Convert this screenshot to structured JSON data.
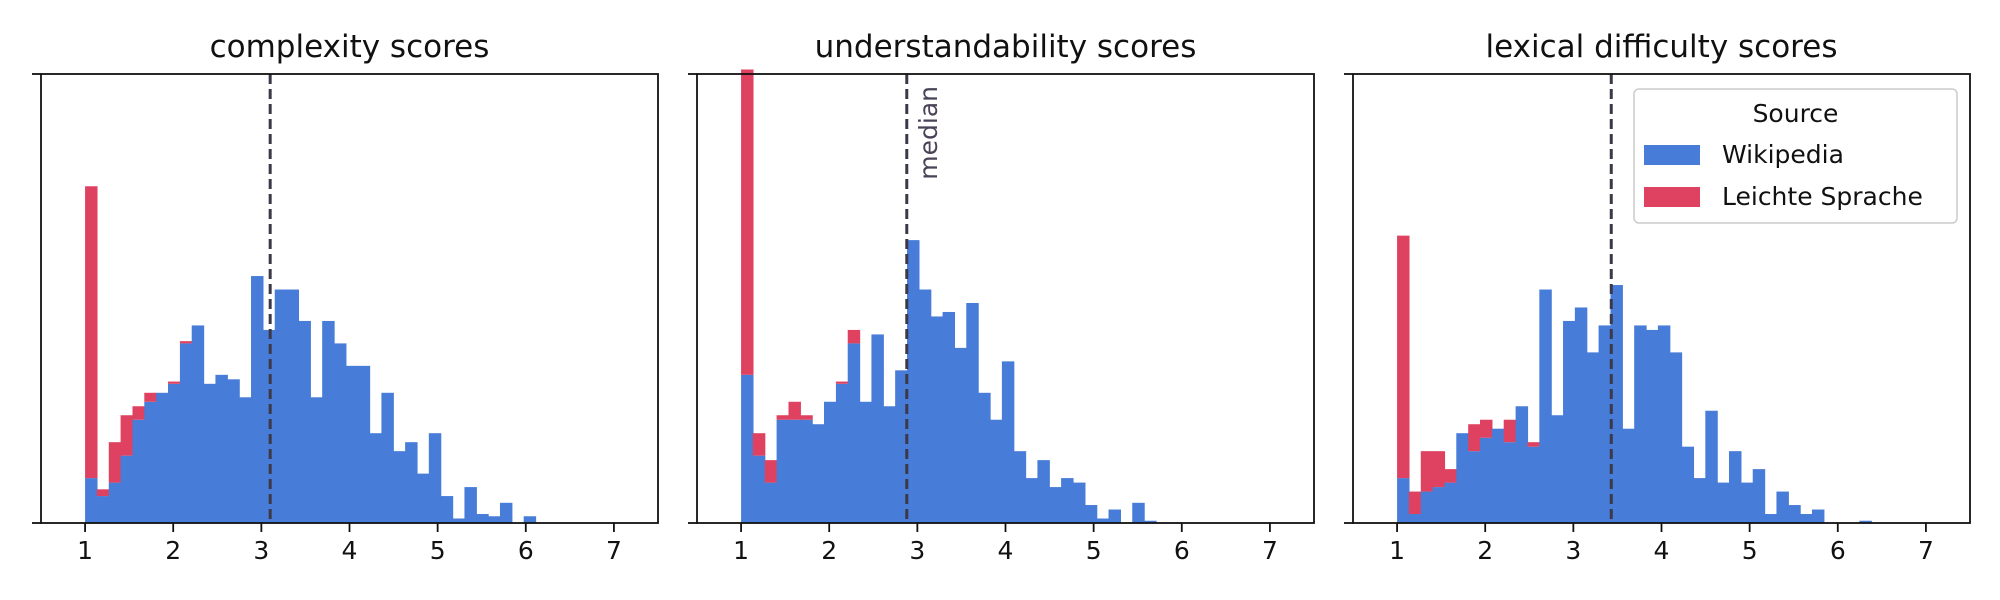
{
  "chart_data": [
    {
      "type": "bar",
      "title": "complexity scores",
      "xlabel": "",
      "ylabel": "",
      "xlim": [
        0.5,
        7.5
      ],
      "ylim": [
        0,
        1.0
      ],
      "xticks": [
        1,
        2,
        3,
        4,
        5,
        6,
        7
      ],
      "bin_width": 0.1345,
      "stacked": true,
      "median": 3.1,
      "median_label": "",
      "bin_starts": [
        1.0,
        1.134,
        1.269,
        1.403,
        1.538,
        1.672,
        1.807,
        1.941,
        2.076,
        2.21,
        2.345,
        2.479,
        2.614,
        2.748,
        2.883,
        3.017,
        3.152,
        3.286,
        3.421,
        3.555,
        3.69,
        3.824,
        3.959,
        4.093,
        4.228,
        4.362,
        4.497,
        4.631,
        4.766,
        4.9,
        5.035,
        5.169,
        5.304,
        5.438,
        5.573,
        5.707,
        5.842,
        5.976,
        6.111,
        6.245
      ],
      "series": [
        {
          "name": "Wikipedia",
          "color": "#477cd8",
          "values": [
            0.1,
            0.06,
            0.09,
            0.15,
            0.23,
            0.27,
            0.29,
            0.31,
            0.4,
            0.44,
            0.31,
            0.33,
            0.32,
            0.28,
            0.55,
            0.43,
            0.52,
            0.52,
            0.45,
            0.28,
            0.45,
            0.4,
            0.35,
            0.35,
            0.2,
            0.29,
            0.16,
            0.18,
            0.11,
            0.2,
            0.06,
            0.01,
            0.08,
            0.02,
            0.015,
            0.045,
            0.0,
            0.015,
            0.0,
            0.0
          ]
        },
        {
          "name": "Leichte Sprache",
          "color": "#de4260",
          "values": [
            0.65,
            0.015,
            0.09,
            0.09,
            0.03,
            0.02,
            0.0,
            0.005,
            0.005,
            0.0,
            0.0,
            0.0,
            0.0,
            0.0,
            0.0,
            0.0,
            0.0,
            0.0,
            0.0,
            0.0,
            0.0,
            0.0,
            0.0,
            0.0,
            0.0,
            0.0,
            0.0,
            0.0,
            0.0,
            0.0,
            0.0,
            0.0,
            0.0,
            0.0,
            0.0,
            0.0,
            0.0,
            0.0,
            0.0,
            0.0
          ]
        }
      ]
    },
    {
      "type": "bar",
      "title": "understandability scores",
      "xlabel": "",
      "ylabel": "",
      "xlim": [
        0.5,
        7.5
      ],
      "ylim": [
        0,
        1.0
      ],
      "xticks": [
        1,
        2,
        3,
        4,
        5,
        6,
        7
      ],
      "bin_width": 0.1345,
      "stacked": true,
      "median": 2.88,
      "median_label": "median",
      "bin_starts": [
        1.0,
        1.134,
        1.269,
        1.403,
        1.538,
        1.672,
        1.807,
        1.941,
        2.076,
        2.21,
        2.345,
        2.479,
        2.614,
        2.748,
        2.883,
        3.017,
        3.152,
        3.286,
        3.421,
        3.555,
        3.69,
        3.824,
        3.959,
        4.093,
        4.228,
        4.362,
        4.497,
        4.631,
        4.766,
        4.9,
        5.035,
        5.169,
        5.304,
        5.438,
        5.573,
        5.707,
        5.842,
        5.976,
        6.111,
        6.245
      ],
      "series": [
        {
          "name": "Wikipedia",
          "color": "#477cd8",
          "values": [
            0.33,
            0.15,
            0.09,
            0.23,
            0.23,
            0.23,
            0.22,
            0.27,
            0.31,
            0.4,
            0.27,
            0.42,
            0.26,
            0.34,
            0.63,
            0.52,
            0.46,
            0.47,
            0.39,
            0.49,
            0.29,
            0.23,
            0.36,
            0.16,
            0.1,
            0.14,
            0.08,
            0.1,
            0.09,
            0.04,
            0.01,
            0.03,
            0.0,
            0.045,
            0.005,
            0.0,
            0.0,
            0.0,
            0.0,
            0.0
          ]
        },
        {
          "name": "Leichte Sprache",
          "color": "#de4260",
          "values": [
            0.68,
            0.05,
            0.05,
            0.01,
            0.04,
            0.01,
            0.0,
            0.0,
            0.005,
            0.03,
            0.0,
            0.0,
            0.0,
            0.0,
            0.0,
            0.0,
            0.0,
            0.0,
            0.0,
            0.0,
            0.0,
            0.0,
            0.0,
            0.0,
            0.0,
            0.0,
            0.0,
            0.0,
            0.0,
            0.0,
            0.0,
            0.0,
            0.0,
            0.0,
            0.0,
            0.0,
            0.0,
            0.0,
            0.0,
            0.0
          ]
        }
      ]
    },
    {
      "type": "bar",
      "title": "lexical difficulty scores",
      "xlabel": "",
      "ylabel": "",
      "xlim": [
        0.5,
        7.5
      ],
      "ylim": [
        0,
        1.0
      ],
      "xticks": [
        1,
        2,
        3,
        4,
        5,
        6,
        7
      ],
      "bin_width": 0.1345,
      "stacked": true,
      "median": 3.43,
      "median_label": "",
      "legend": {
        "title": "Source",
        "placement": "top-right"
      },
      "bin_starts": [
        1.0,
        1.134,
        1.269,
        1.403,
        1.538,
        1.672,
        1.807,
        1.941,
        2.076,
        2.21,
        2.345,
        2.479,
        2.614,
        2.748,
        2.883,
        3.017,
        3.152,
        3.286,
        3.421,
        3.555,
        3.69,
        3.824,
        3.959,
        4.093,
        4.228,
        4.362,
        4.497,
        4.631,
        4.766,
        4.9,
        5.035,
        5.169,
        5.304,
        5.438,
        5.573,
        5.707,
        5.842,
        5.976,
        6.111,
        6.245,
        6.38,
        6.514,
        6.649
      ],
      "series": [
        {
          "name": "Wikipedia",
          "color": "#477cd8",
          "values": [
            0.1,
            0.02,
            0.07,
            0.08,
            0.09,
            0.2,
            0.16,
            0.19,
            0.21,
            0.18,
            0.26,
            0.17,
            0.52,
            0.24,
            0.45,
            0.48,
            0.38,
            0.44,
            0.53,
            0.21,
            0.44,
            0.43,
            0.44,
            0.38,
            0.17,
            0.1,
            0.25,
            0.09,
            0.16,
            0.09,
            0.12,
            0.02,
            0.07,
            0.04,
            0.02,
            0.03,
            0.0,
            0.0,
            0.0,
            0.005,
            0.0,
            0.0,
            0.0
          ]
        },
        {
          "name": "Leichte Sprache",
          "color": "#de4260",
          "values": [
            0.54,
            0.05,
            0.09,
            0.08,
            0.03,
            0.0,
            0.06,
            0.04,
            0.0,
            0.05,
            0.0,
            0.01,
            0.0,
            0.0,
            0.0,
            0.0,
            0.0,
            0.0,
            0.0,
            0.0,
            0.0,
            0.0,
            0.0,
            0.0,
            0.0,
            0.0,
            0.0,
            0.0,
            0.0,
            0.0,
            0.0,
            0.0,
            0.0,
            0.0,
            0.0,
            0.0,
            0.0,
            0.0,
            0.0,
            0.0,
            0.0,
            0.0,
            0.0
          ]
        }
      ]
    }
  ]
}
